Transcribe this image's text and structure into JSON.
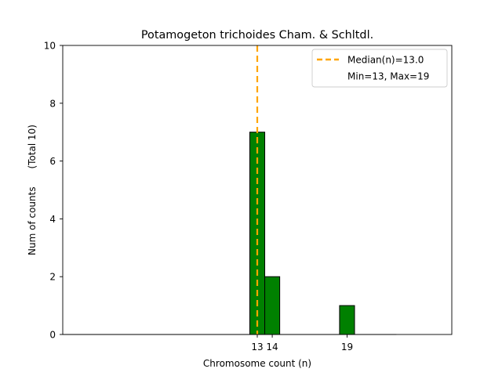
{
  "chart_data": {
    "type": "bar",
    "title": "Potamogeton trichoides Cham. & Schltdl.",
    "xlabel": "Chromosome count (n)",
    "ylabel": "Num of counts      (Total 10)",
    "xlim": [
      0,
      26
    ],
    "ylim": [
      0,
      10
    ],
    "yticks": [
      0,
      2,
      4,
      6,
      8,
      10
    ],
    "xticks": [
      13,
      14,
      19
    ],
    "bar_width": 1,
    "bar_color": "#008000",
    "bar_edge_color": "#000000",
    "bars": [
      {
        "x": 13,
        "count": 7
      },
      {
        "x": 14,
        "count": 2
      },
      {
        "x": 19,
        "count": 1
      }
    ],
    "baseline_end": 22.3,
    "median": {
      "value": 13.0,
      "color": "#FFA500"
    },
    "legend": {
      "position": "top-right",
      "entries": [
        {
          "label": "Median(n)=13.0",
          "style": "dashed-line",
          "color": "#FFA500"
        },
        {
          "label": "Min=13, Max=19",
          "style": "none"
        }
      ]
    }
  }
}
